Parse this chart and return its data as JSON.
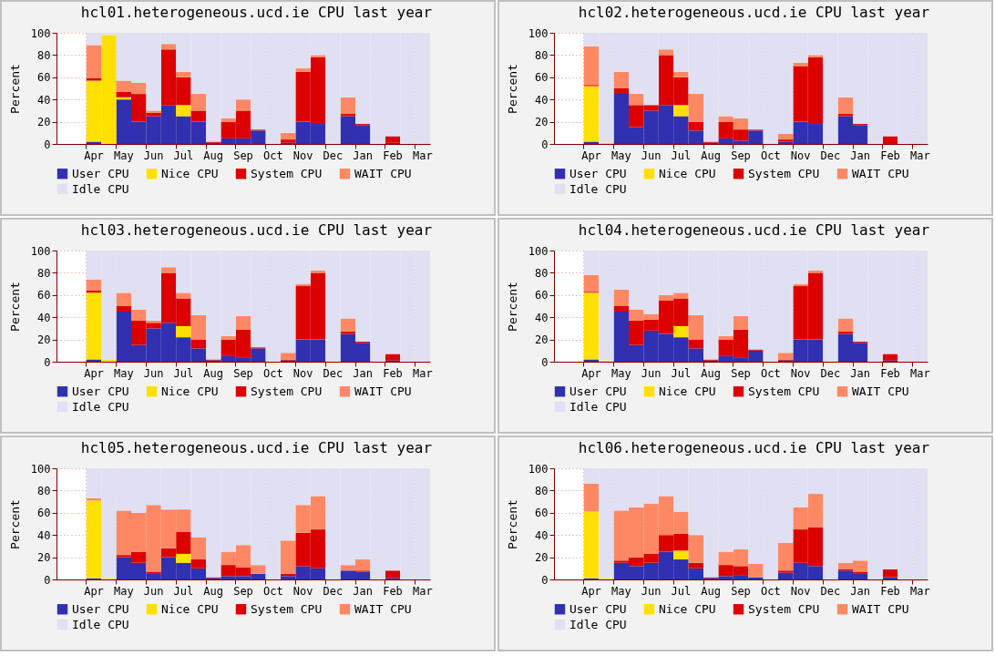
{
  "chart_data": [
    {
      "type": "bar",
      "title": "hcl01.heterogeneous.ucd.ie CPU last year",
      "ylabel": "Percent",
      "stacked": true,
      "grid": true,
      "legend": "bottom",
      "ylim": [
        0,
        100
      ],
      "yticks": [
        0,
        20,
        40,
        60,
        80,
        100
      ],
      "categories": [
        null,
        null,
        "Apr",
        null,
        "May",
        null,
        "Jun",
        null,
        "Jul",
        null,
        "Aug",
        null,
        "Sep",
        null,
        "Oct",
        null,
        "Nov",
        null,
        "Dec",
        null,
        "Jan",
        null,
        "Feb",
        null,
        "Mar"
      ],
      "series": [
        {
          "name": "User CPU",
          "color": "#3030b0",
          "values": [
            null,
            null,
            2,
            0,
            40,
            20,
            25,
            35,
            25,
            20,
            1,
            5,
            5,
            12,
            0,
            1,
            20,
            18,
            0,
            25,
            17,
            0,
            1,
            0,
            0
          ]
        },
        {
          "name": "Nice CPU",
          "color": "#ffe000",
          "values": [
            null,
            null,
            55,
            98,
            2,
            0,
            0,
            0,
            10,
            0,
            0,
            0,
            0,
            0,
            0,
            0,
            0,
            0,
            0,
            0,
            0,
            0,
            0,
            0,
            0
          ]
        },
        {
          "name": "System CPU",
          "color": "#dd0000",
          "values": [
            null,
            null,
            2,
            0,
            5,
            25,
            3,
            50,
            25,
            10,
            1,
            15,
            25,
            1,
            0,
            3,
            45,
            60,
            0,
            2,
            1,
            0,
            6,
            0,
            0
          ]
        },
        {
          "name": "WAIT CPU",
          "color": "#ff8864",
          "values": [
            null,
            null,
            30,
            0,
            10,
            10,
            2,
            5,
            5,
            15,
            0,
            3,
            10,
            0,
            0,
            6,
            3,
            2,
            0,
            15,
            0,
            0,
            0,
            0,
            0
          ]
        },
        {
          "name": "Idle CPU",
          "color": "#e0e0f2",
          "values": [
            null,
            null,
            11,
            2,
            43,
            45,
            70,
            10,
            35,
            55,
            98,
            77,
            60,
            87,
            100,
            90,
            32,
            20,
            100,
            58,
            82,
            100,
            93,
            100,
            100
          ]
        }
      ]
    },
    {
      "type": "bar",
      "title": "hcl02.heterogeneous.ucd.ie CPU last year",
      "ylabel": "Percent",
      "stacked": true,
      "grid": true,
      "legend": "bottom",
      "ylim": [
        0,
        100
      ],
      "yticks": [
        0,
        20,
        40,
        60,
        80,
        100
      ],
      "categories": [
        null,
        null,
        "Apr",
        null,
        "May",
        null,
        "Jun",
        null,
        "Jul",
        null,
        "Aug",
        null,
        "Sep",
        null,
        "Oct",
        null,
        "Nov",
        null,
        "Dec",
        null,
        "Jan",
        null,
        "Feb",
        null,
        "Mar"
      ],
      "series": [
        {
          "name": "User CPU",
          "color": "#3030b0",
          "values": [
            null,
            null,
            2,
            0,
            45,
            15,
            30,
            35,
            25,
            12,
            1,
            5,
            3,
            12,
            0,
            2,
            20,
            18,
            0,
            25,
            17,
            0,
            0,
            0,
            0
          ]
        },
        {
          "name": "Nice CPU",
          "color": "#ffe000",
          "values": [
            null,
            null,
            50,
            1,
            0,
            0,
            0,
            0,
            10,
            0,
            0,
            0,
            0,
            0,
            0,
            0,
            0,
            0,
            0,
            0,
            0,
            0,
            0,
            0,
            0
          ]
        },
        {
          "name": "System CPU",
          "color": "#dd0000",
          "values": [
            null,
            null,
            1,
            0,
            5,
            20,
            5,
            45,
            25,
            8,
            1,
            15,
            10,
            1,
            0,
            2,
            50,
            60,
            0,
            2,
            1,
            0,
            7,
            0,
            0
          ]
        },
        {
          "name": "WAIT CPU",
          "color": "#ff8864",
          "values": [
            null,
            null,
            35,
            0,
            15,
            10,
            0,
            5,
            5,
            25,
            0,
            5,
            10,
            0,
            0,
            5,
            3,
            2,
            0,
            15,
            0,
            0,
            0,
            0,
            0
          ]
        },
        {
          "name": "Idle CPU",
          "color": "#e0e0f2",
          "values": [
            null,
            null,
            12,
            99,
            35,
            55,
            65,
            15,
            35,
            55,
            98,
            75,
            77,
            87,
            100,
            91,
            27,
            20,
            100,
            58,
            82,
            100,
            93,
            100,
            100
          ]
        }
      ]
    },
    {
      "type": "bar",
      "title": "hcl03.heterogeneous.ucd.ie CPU last year",
      "ylabel": "Percent",
      "stacked": true,
      "grid": true,
      "legend": "bottom",
      "ylim": [
        0,
        100
      ],
      "yticks": [
        0,
        20,
        40,
        60,
        80,
        100
      ],
      "categories": [
        null,
        null,
        "Apr",
        null,
        "May",
        null,
        "Jun",
        null,
        "Jul",
        null,
        "Aug",
        null,
        "Sep",
        null,
        "Oct",
        null,
        "Nov",
        null,
        "Dec",
        null,
        "Jan",
        null,
        "Feb",
        null,
        "Mar"
      ],
      "series": [
        {
          "name": "User CPU",
          "color": "#3030b0",
          "values": [
            null,
            null,
            2,
            0,
            45,
            15,
            30,
            35,
            22,
            12,
            1,
            5,
            4,
            12,
            0,
            1,
            20,
            20,
            0,
            25,
            17,
            0,
            1,
            0,
            0
          ]
        },
        {
          "name": "Nice CPU",
          "color": "#ffe000",
          "values": [
            null,
            null,
            60,
            2,
            0,
            0,
            0,
            0,
            10,
            0,
            0,
            0,
            0,
            0,
            0,
            0,
            0,
            0,
            0,
            0,
            0,
            0,
            0,
            0,
            0
          ]
        },
        {
          "name": "System CPU",
          "color": "#dd0000",
          "values": [
            null,
            null,
            2,
            0,
            5,
            22,
            5,
            45,
            25,
            8,
            1,
            15,
            25,
            1,
            0,
            1,
            48,
            60,
            0,
            2,
            1,
            0,
            6,
            0,
            0
          ]
        },
        {
          "name": "WAIT CPU",
          "color": "#ff8864",
          "values": [
            null,
            null,
            10,
            0,
            12,
            10,
            2,
            5,
            5,
            22,
            0,
            3,
            12,
            0,
            0,
            6,
            2,
            2,
            0,
            12,
            0,
            0,
            0,
            0,
            0
          ]
        },
        {
          "name": "Idle CPU",
          "color": "#e0e0f2",
          "values": [
            null,
            null,
            26,
            98,
            38,
            53,
            63,
            15,
            38,
            58,
            98,
            77,
            59,
            87,
            100,
            92,
            30,
            18,
            100,
            61,
            82,
            100,
            93,
            100,
            100
          ]
        }
      ]
    },
    {
      "type": "bar",
      "title": "hcl04.heterogeneous.ucd.ie CPU last year",
      "ylabel": "Percent",
      "stacked": true,
      "grid": true,
      "legend": "bottom",
      "ylim": [
        0,
        100
      ],
      "yticks": [
        0,
        20,
        40,
        60,
        80,
        100
      ],
      "categories": [
        null,
        null,
        "Apr",
        null,
        "May",
        null,
        "Jun",
        null,
        "Jul",
        null,
        "Aug",
        null,
        "Sep",
        null,
        "Oct",
        null,
        "Nov",
        null,
        "Dec",
        null,
        "Jan",
        null,
        "Feb",
        null,
        "Mar"
      ],
      "series": [
        {
          "name": "User CPU",
          "color": "#3030b0",
          "values": [
            null,
            null,
            2,
            0,
            45,
            15,
            28,
            25,
            22,
            12,
            1,
            5,
            4,
            10,
            0,
            1,
            20,
            20,
            0,
            25,
            17,
            0,
            1,
            0,
            0
          ]
        },
        {
          "name": "Nice CPU",
          "color": "#ffe000",
          "values": [
            null,
            null,
            60,
            1,
            0,
            0,
            0,
            0,
            10,
            0,
            0,
            0,
            0,
            0,
            0,
            0,
            0,
            0,
            0,
            0,
            0,
            0,
            0,
            0,
            0
          ]
        },
        {
          "name": "System CPU",
          "color": "#dd0000",
          "values": [
            null,
            null,
            1,
            0,
            5,
            22,
            10,
            30,
            25,
            8,
            1,
            15,
            25,
            1,
            0,
            1,
            48,
            60,
            0,
            2,
            1,
            0,
            6,
            0,
            0
          ]
        },
        {
          "name": "WAIT CPU",
          "color": "#ff8864",
          "values": [
            null,
            null,
            15,
            0,
            15,
            10,
            5,
            5,
            5,
            22,
            0,
            3,
            12,
            0,
            0,
            6,
            2,
            2,
            0,
            12,
            0,
            0,
            0,
            0,
            0
          ]
        },
        {
          "name": "Idle CPU",
          "color": "#e0e0f2",
          "values": [
            null,
            null,
            22,
            99,
            35,
            53,
            57,
            40,
            38,
            58,
            98,
            77,
            59,
            89,
            100,
            92,
            30,
            18,
            100,
            61,
            82,
            100,
            93,
            100,
            100
          ]
        }
      ]
    },
    {
      "type": "bar",
      "title": "hcl05.heterogeneous.ucd.ie CPU last year",
      "ylabel": "Percent",
      "stacked": true,
      "grid": true,
      "legend": "bottom",
      "ylim": [
        0,
        100
      ],
      "yticks": [
        0,
        20,
        40,
        60,
        80,
        100
      ],
      "categories": [
        null,
        null,
        "Apr",
        null,
        "May",
        null,
        "Jun",
        null,
        "Jul",
        null,
        "Aug",
        null,
        "Sep",
        null,
        "Oct",
        null,
        "Nov",
        null,
        "Dec",
        null,
        "Jan",
        null,
        "Feb",
        null,
        "Mar"
      ],
      "series": [
        {
          "name": "User CPU",
          "color": "#3030b0",
          "values": [
            null,
            null,
            1,
            0,
            20,
            15,
            5,
            20,
            15,
            10,
            1,
            3,
            3,
            5,
            0,
            3,
            12,
            10,
            0,
            8,
            7,
            0,
            1,
            0,
            0
          ]
        },
        {
          "name": "Nice CPU",
          "color": "#ffe000",
          "values": [
            null,
            null,
            70,
            1,
            0,
            0,
            0,
            0,
            8,
            0,
            0,
            0,
            0,
            0,
            0,
            0,
            0,
            0,
            0,
            0,
            0,
            0,
            0,
            0,
            0
          ]
        },
        {
          "name": "System CPU",
          "color": "#dd0000",
          "values": [
            null,
            null,
            0,
            0,
            2,
            10,
            2,
            8,
            20,
            8,
            1,
            10,
            8,
            0,
            0,
            2,
            30,
            35,
            0,
            0,
            1,
            0,
            7,
            0,
            0
          ]
        },
        {
          "name": "WAIT CPU",
          "color": "#ff8864",
          "values": [
            null,
            null,
            2,
            0,
            40,
            35,
            60,
            35,
            20,
            20,
            0,
            12,
            20,
            8,
            0,
            30,
            25,
            30,
            0,
            5,
            10,
            0,
            0,
            0,
            0
          ]
        },
        {
          "name": "Idle CPU",
          "color": "#e0e0f2",
          "values": [
            null,
            null,
            27,
            99,
            38,
            40,
            33,
            37,
            37,
            62,
            98,
            75,
            69,
            87,
            100,
            65,
            33,
            25,
            100,
            87,
            82,
            100,
            92,
            100,
            100
          ]
        }
      ]
    },
    {
      "type": "bar",
      "title": "hcl06.heterogeneous.ucd.ie CPU last year",
      "ylabel": "Percent",
      "stacked": true,
      "grid": true,
      "legend": "bottom",
      "ylim": [
        0,
        100
      ],
      "yticks": [
        0,
        20,
        40,
        60,
        80,
        100
      ],
      "categories": [
        null,
        null,
        "Apr",
        null,
        "May",
        null,
        "Jun",
        null,
        "Jul",
        null,
        "Aug",
        null,
        "Sep",
        null,
        "Oct",
        null,
        "Nov",
        null,
        "Dec",
        null,
        "Jan",
        null,
        "Feb",
        null,
        "Mar"
      ],
      "series": [
        {
          "name": "User CPU",
          "color": "#3030b0",
          "values": [
            null,
            null,
            1,
            0,
            15,
            12,
            15,
            25,
            18,
            10,
            1,
            3,
            4,
            2,
            0,
            6,
            15,
            12,
            0,
            8,
            5,
            0,
            2,
            0,
            0
          ]
        },
        {
          "name": "Nice CPU",
          "color": "#ffe000",
          "values": [
            null,
            null,
            60,
            1,
            0,
            0,
            0,
            0,
            8,
            0,
            0,
            0,
            0,
            0,
            0,
            0,
            0,
            0,
            0,
            0,
            0,
            0,
            0,
            0,
            0
          ]
        },
        {
          "name": "System CPU",
          "color": "#dd0000",
          "values": [
            null,
            null,
            0,
            0,
            2,
            8,
            8,
            15,
            15,
            5,
            1,
            10,
            8,
            0,
            0,
            2,
            30,
            35,
            0,
            1,
            2,
            0,
            7,
            0,
            0
          ]
        },
        {
          "name": "WAIT CPU",
          "color": "#ff8864",
          "values": [
            null,
            null,
            25,
            0,
            45,
            45,
            45,
            35,
            20,
            25,
            0,
            12,
            15,
            12,
            0,
            25,
            20,
            30,
            0,
            6,
            10,
            0,
            0,
            0,
            0
          ]
        },
        {
          "name": "Idle CPU",
          "color": "#e0e0f2",
          "values": [
            null,
            null,
            14,
            99,
            38,
            35,
            32,
            25,
            39,
            60,
            98,
            75,
            73,
            86,
            100,
            67,
            35,
            23,
            100,
            85,
            83,
            100,
            91,
            100,
            100
          ]
        }
      ]
    }
  ]
}
